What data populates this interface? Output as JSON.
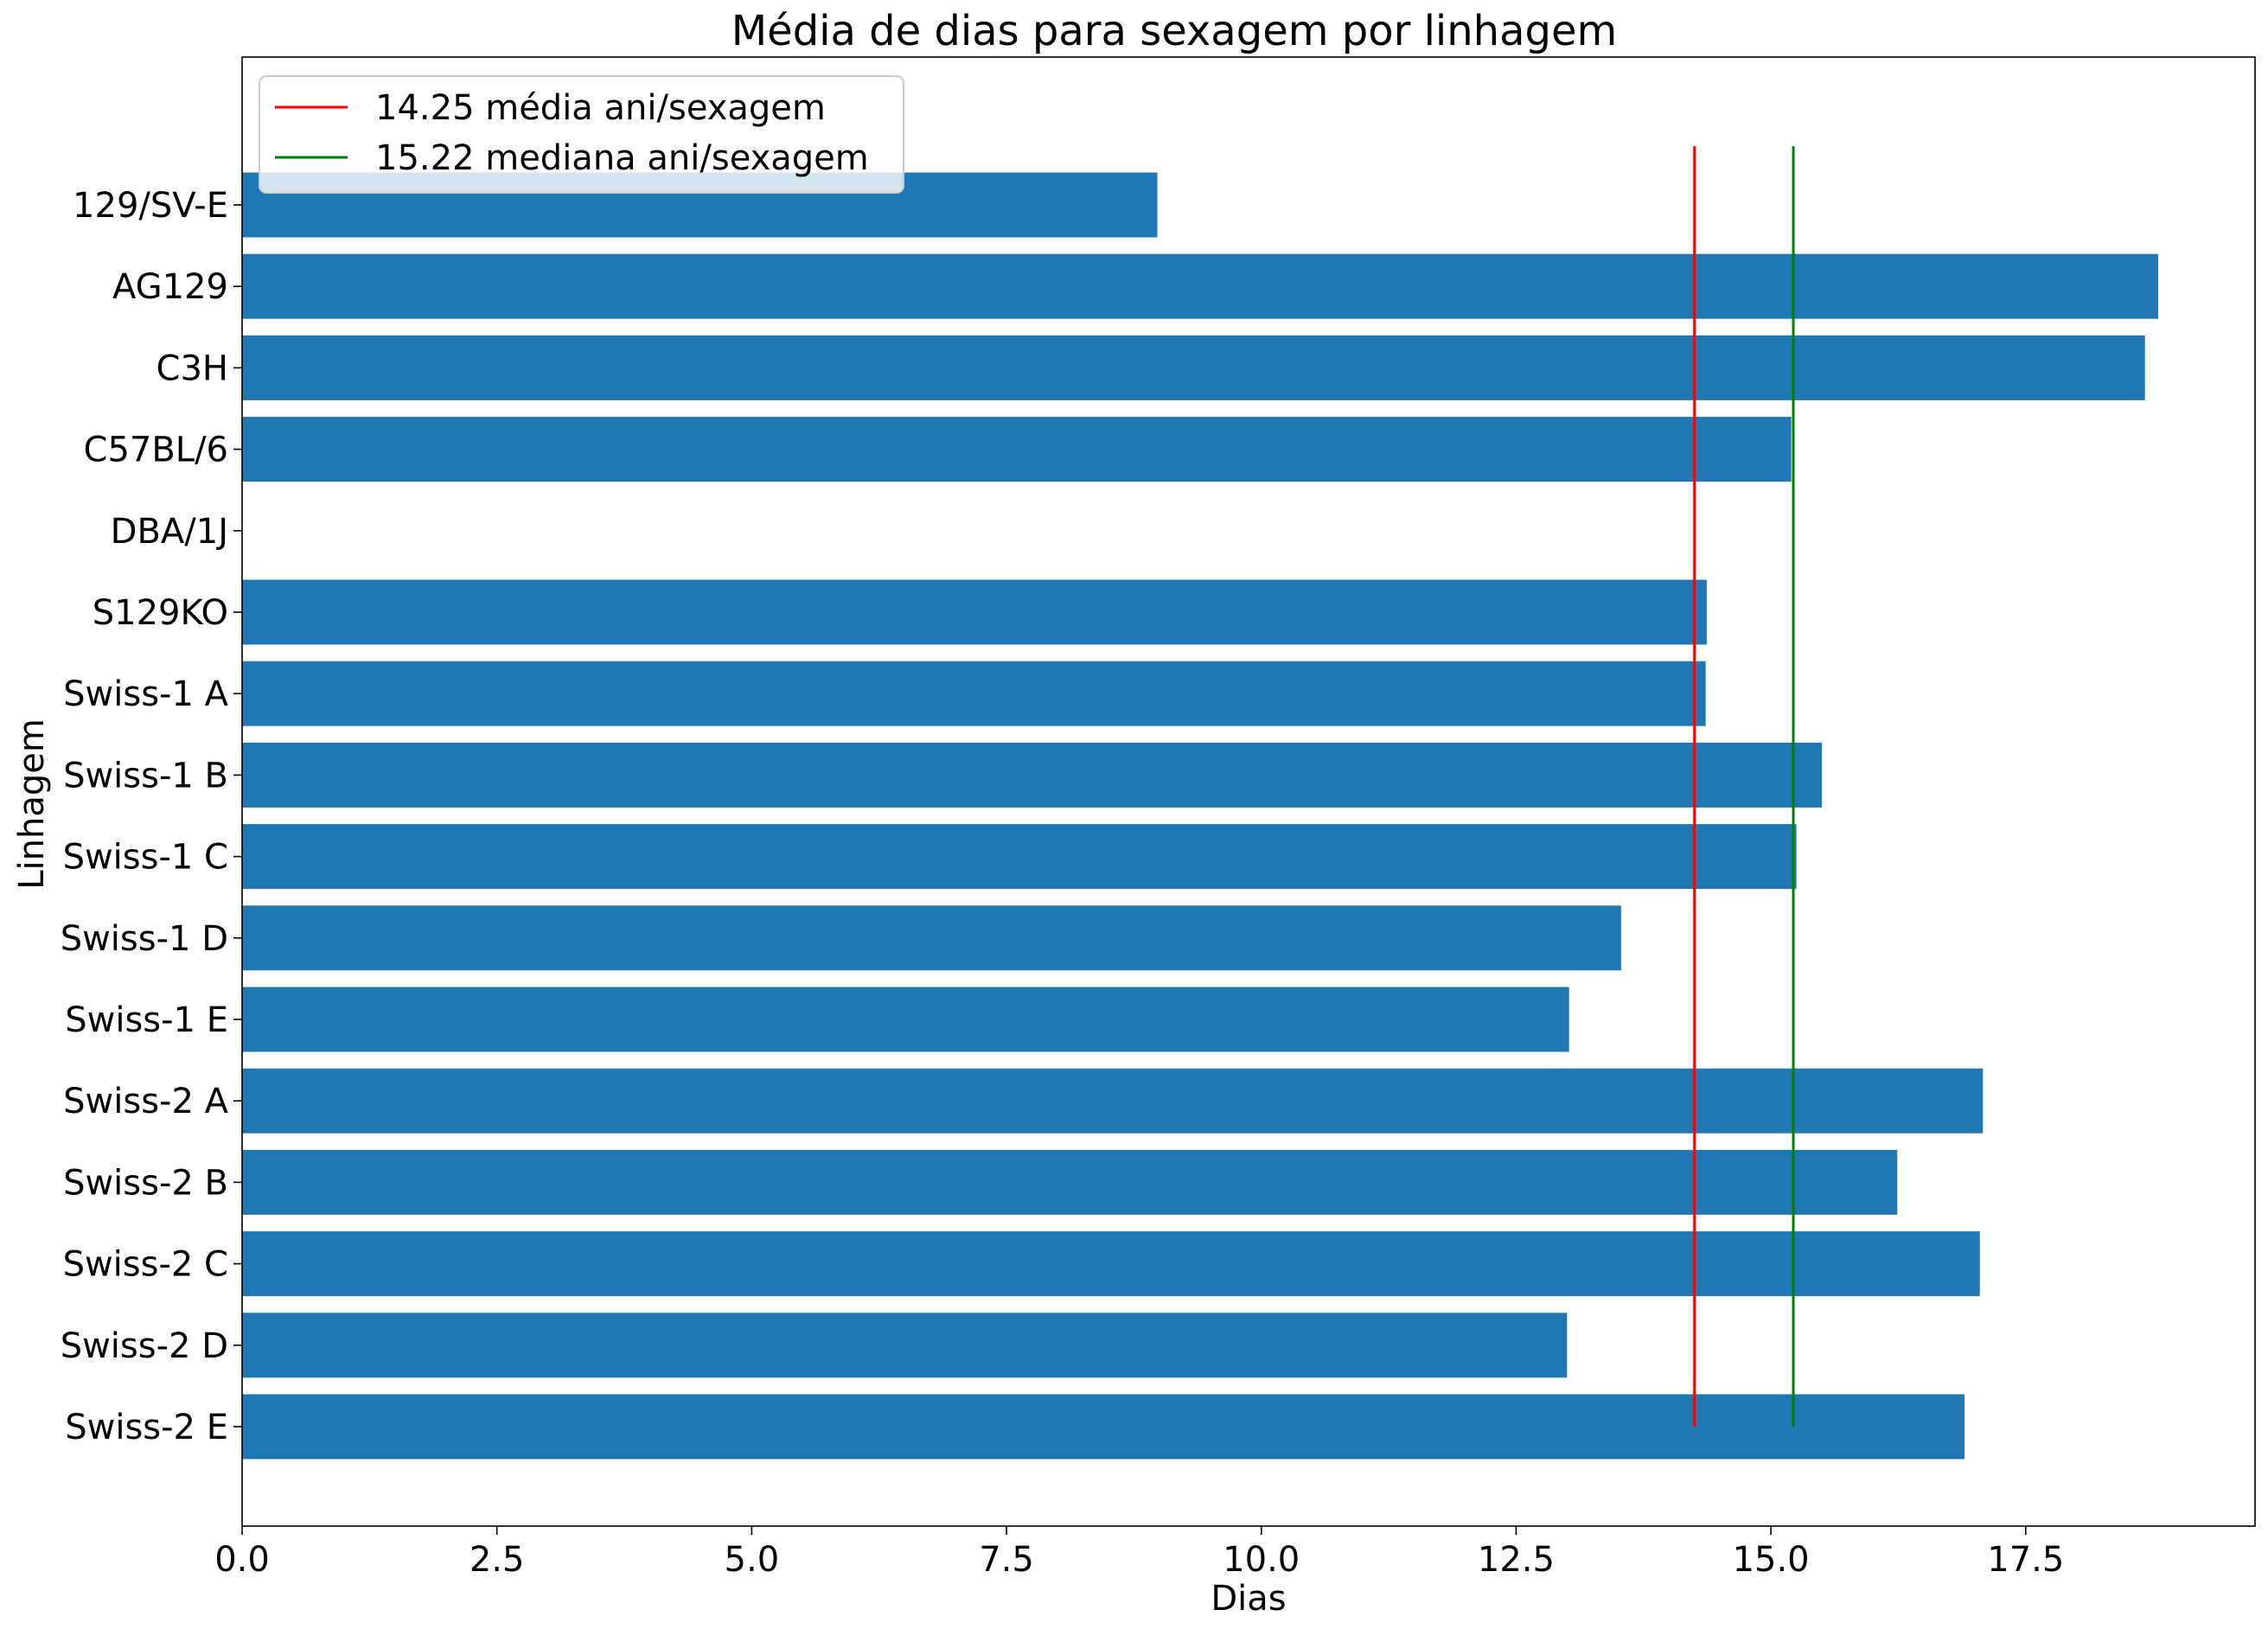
{
  "chart_data": {
    "type": "bar",
    "orientation": "horizontal",
    "title": "Média de dias para sexagem por linhagem",
    "xlabel": "Dias",
    "ylabel": "Linhagem",
    "xlim": [
      0,
      19.75
    ],
    "x_ticks": [
      "0.0",
      "2.5",
      "5.0",
      "7.5",
      "10.0",
      "12.5",
      "15.0",
      "17.5"
    ],
    "x_tick_values": [
      0,
      2.5,
      5,
      7.5,
      10,
      12.5,
      15,
      17.5
    ],
    "categories": [
      "129/SV-E",
      "AG129",
      "C3H",
      "C57BL/6",
      "DBA/1J",
      "S129KO",
      "Swiss-1 A",
      "Swiss-1 B",
      "Swiss-1 C",
      "Swiss-1 D",
      "Swiss-1 E",
      "Swiss-2 A",
      "Swiss-2 B",
      "Swiss-2 C",
      "Swiss-2 D",
      "Swiss-2 E"
    ],
    "values": [
      8.98,
      18.8,
      18.67,
      15.2,
      0,
      14.37,
      14.36,
      15.5,
      15.25,
      13.53,
      13.02,
      17.08,
      16.24,
      17.05,
      13.0,
      16.9
    ],
    "bar_color": "#1f77b4",
    "grid": false,
    "legend_position": "top-left",
    "reference_lines": [
      {
        "label": "14.25 média ani/sexagem",
        "value": 14.25,
        "color": "#ff0000"
      },
      {
        "label": "15.22 mediana ani/sexagem",
        "value": 15.22,
        "color": "#008000"
      }
    ]
  }
}
